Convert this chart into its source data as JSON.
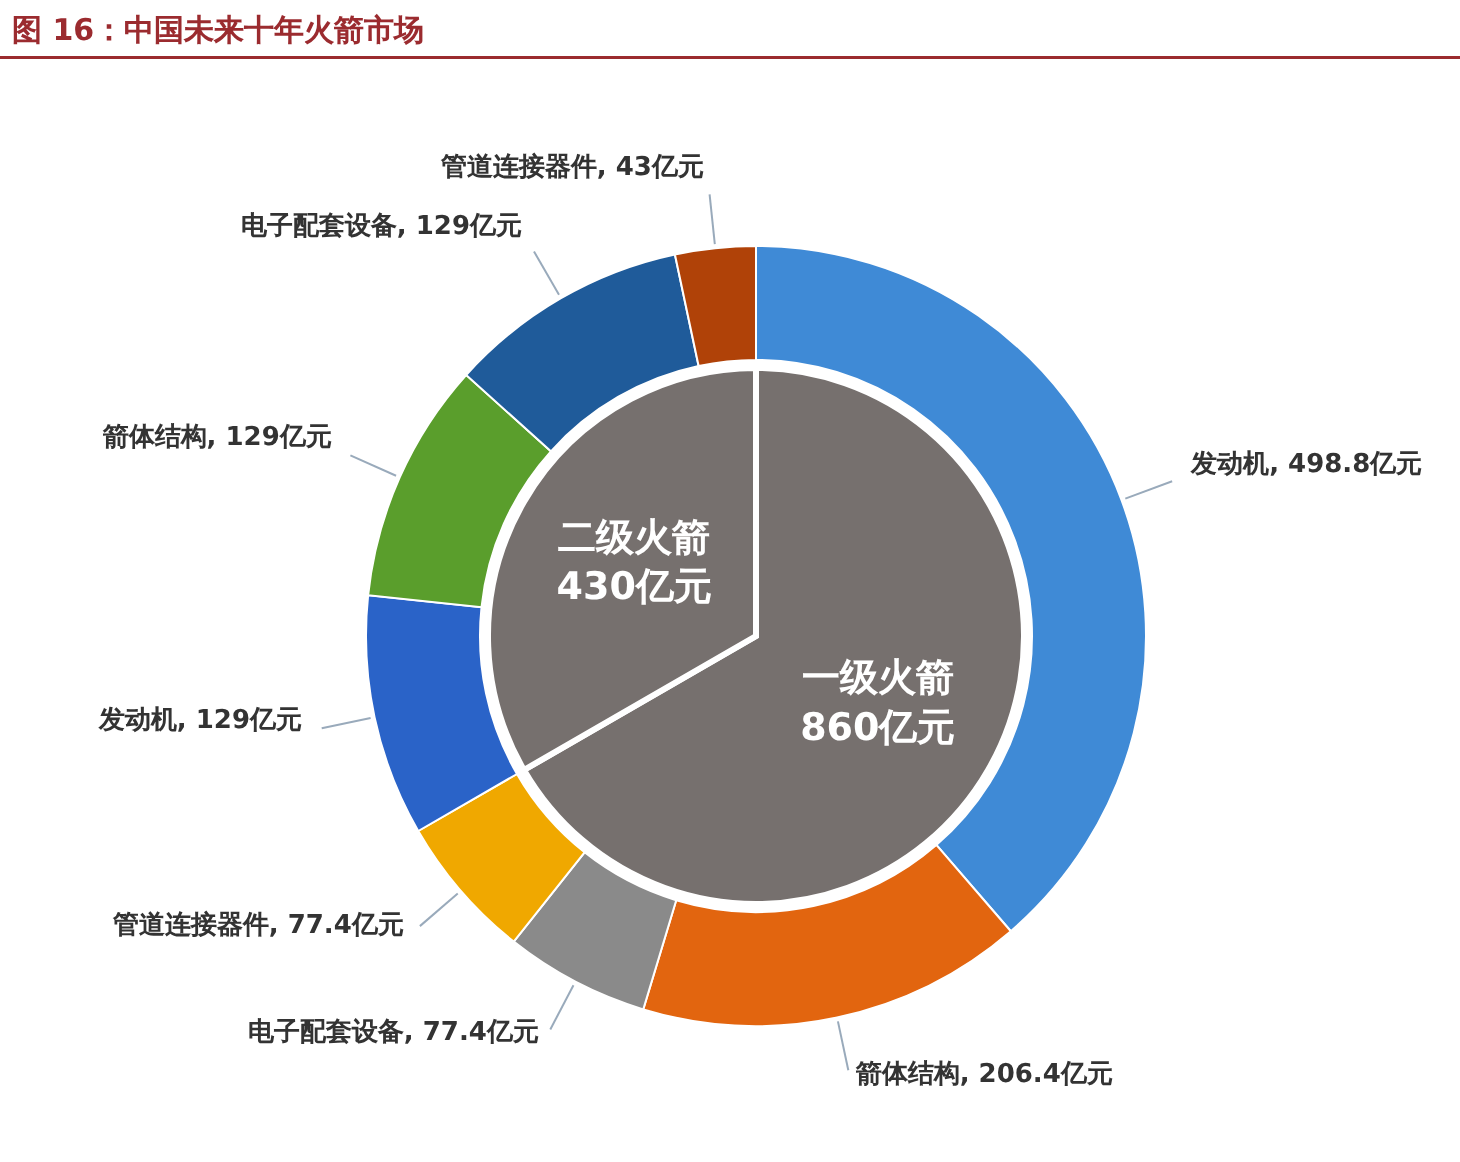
{
  "chart_data": [
    {
      "type": "pie",
      "title": "图 16：中国未来十年火箭市场",
      "categories": [
        "一级火箭",
        "二级火箭"
      ],
      "values": [
        860,
        430
      ],
      "colors": [
        "#76706e",
        "#76706e"
      ],
      "value_labels": [
        "860亿元",
        "430亿元"
      ]
    },
    {
      "type": "donut",
      "categories": [
        "发动机",
        "箭体结构",
        "电子配套设备",
        "管道连接器件",
        "发动机",
        "箭体结构",
        "电子配套设备",
        "管道连接器件"
      ],
      "values": [
        498.8,
        206.4,
        77.4,
        77.4,
        129,
        129,
        129,
        43
      ],
      "colors": [
        "#3f8ad6",
        "#e2650f",
        "#8a8a8a",
        "#f0a800",
        "#2a63c8",
        "#5a9e2c",
        "#1f5b9a",
        "#b04208"
      ],
      "value_labels": [
        "498.8亿元",
        "206.4亿元",
        "77.4亿元",
        "77.4亿元",
        "129亿元",
        "129亿元",
        "129亿元",
        "43亿元"
      ]
    }
  ]
}
